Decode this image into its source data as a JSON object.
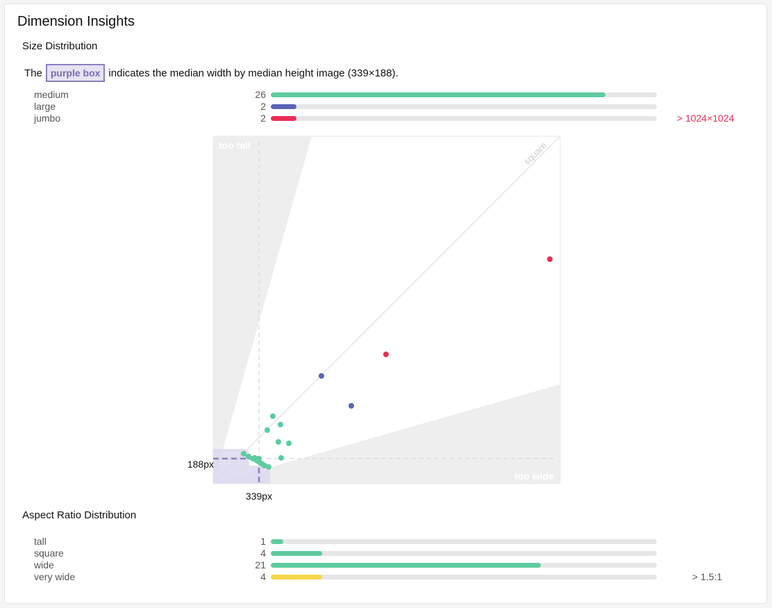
{
  "title": "Dimension Insights",
  "size_section": {
    "heading": "Size Distribution",
    "desc_prefix": "The",
    "box_label": "purple box",
    "desc_suffix": "indicates the median width by median height image (339×188).",
    "rows": [
      {
        "label": "medium",
        "count": "26",
        "fraction": 0.867,
        "color": "#5ecb9f"
      },
      {
        "label": "large",
        "count": "2",
        "fraction": 0.067,
        "color": "#5b63b7"
      },
      {
        "label": "jumbo",
        "count": "2",
        "fraction": 0.067,
        "color": "#ea2e55",
        "note": "> 1024×1024"
      }
    ]
  },
  "scatter": {
    "label_too_tall": "too tall",
    "label_too_wide": "too wide",
    "label_square": "square",
    "median_width_label": "339px",
    "median_height_label": "188px",
    "colors": {
      "medium": "#5ecb9f",
      "large": "#5b63b7",
      "jumbo": "#ea2e55",
      "median": "#8b7fbf"
    }
  },
  "aspect_section": {
    "heading": "Aspect Ratio Distribution",
    "rows": [
      {
        "label": "tall",
        "count": "1",
        "fraction": 0.033,
        "color": "#5ecb9f"
      },
      {
        "label": "square",
        "count": "4",
        "fraction": 0.133,
        "color": "#5ecb9f"
      },
      {
        "label": "wide",
        "count": "21",
        "fraction": 0.7,
        "color": "#5ecb9f"
      },
      {
        "label": "very wide",
        "count": "4",
        "fraction": 0.133,
        "color": "#f6d84a",
        "note": "> 1.5:1"
      }
    ]
  }
}
